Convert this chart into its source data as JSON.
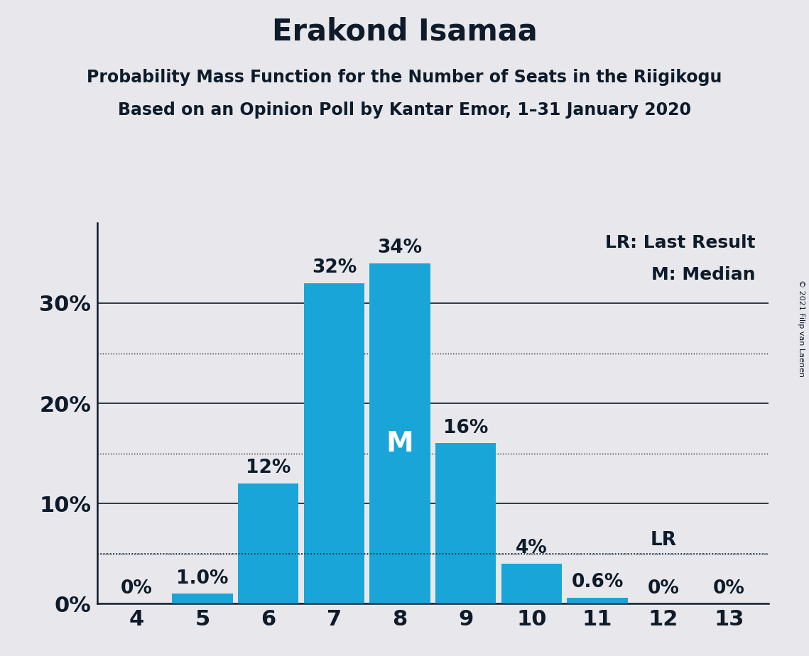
{
  "title": "Erakond Isamaa",
  "subtitle1": "Probability Mass Function for the Number of Seats in the Riigikogu",
  "subtitle2": "Based on an Opinion Poll by Kantar Emor, 1–31 January 2020",
  "copyright": "© 2021 Filip van Laenen",
  "categories": [
    4,
    5,
    6,
    7,
    8,
    9,
    10,
    11,
    12,
    13
  ],
  "values": [
    0.0,
    1.0,
    12.0,
    32.0,
    34.0,
    16.0,
    4.0,
    0.6,
    0.0,
    0.0
  ],
  "bar_color": "#1aa5d8",
  "background_color": "#e8e8ec",
  "median": 8,
  "last_result": 12,
  "last_result_value": 5.0,
  "ylabel_ticks": [
    0,
    10,
    20,
    30
  ],
  "dotted_lines": [
    5,
    15,
    25
  ],
  "solid_lines": [
    10,
    20,
    30
  ],
  "ylim": [
    0,
    38
  ],
  "bar_labels": [
    "0%",
    "1.0%",
    "12%",
    "32%",
    "34%",
    "16%",
    "4%",
    "0.6%",
    "0%",
    "0%"
  ],
  "legend_lr": "LR: Last Result",
  "legend_m": "M: Median",
  "title_fontsize": 30,
  "subtitle_fontsize": 17,
  "bar_label_fontsize": 19,
  "tick_fontsize": 22,
  "legend_fontsize": 18,
  "text_color": "#0d1b2a"
}
